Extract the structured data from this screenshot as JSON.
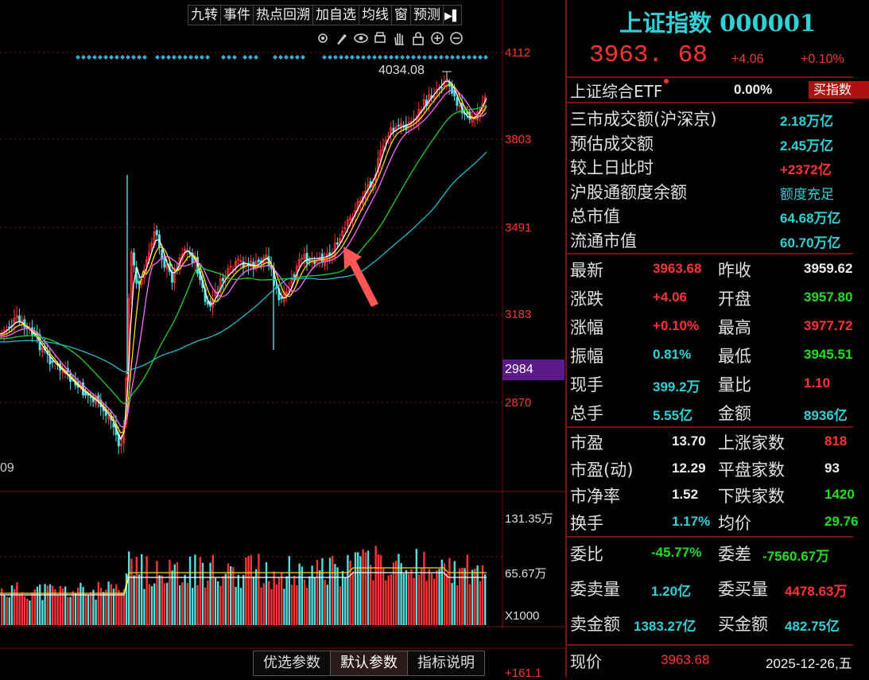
{
  "toolbar": {
    "buttons": [
      "九转",
      "事件",
      "热点回溯",
      "加自选",
      "均线",
      "窗",
      "预测"
    ]
  },
  "icons": [
    "gear-icon",
    "brush-icon",
    "eye-icon",
    "print-icon",
    "hand-icon",
    "lock-icon",
    "zoom-in-icon",
    "zoom-out-icon"
  ],
  "chart": {
    "price_labels": [
      "4112",
      "3803",
      "3491",
      "3183",
      "2870"
    ],
    "current_price_tag": "2984",
    "peak_label": "4034.08",
    "left_partial_label": "09",
    "volume_labels": [
      "131.35万",
      "65.67万"
    ],
    "volume_unit": "X1000",
    "bottom_partial": "+161.1",
    "colors": {
      "up": "#ff3333",
      "down": "#55dddd",
      "ma_white": "#ffffff",
      "ma_yellow": "#ffdd00",
      "ma_pink": "#ff66ff",
      "ma_green": "#22cc22",
      "ma_cyan": "#22bbcc",
      "arrow": "#ff5555"
    }
  },
  "bottom_tabs": [
    "优选参数",
    "默认参数",
    "指标说明"
  ],
  "panel": {
    "title": "上证指数 000001",
    "price": "3963. 68",
    "change": "+4.06",
    "change_pct": "+0.10%",
    "etf_label": "上证综合ETF",
    "etf_value": "0.00%",
    "etf_button": "买指数",
    "info": [
      {
        "label": "三市成交额(沪深京)",
        "value": "2.18万亿"
      },
      {
        "label": "预估成交额",
        "value": "2.45万亿"
      },
      {
        "label": "较上日此时",
        "value": "+2372亿"
      },
      {
        "label": "沪股通额度余额",
        "value": "额度充足"
      },
      {
        "label": "总市值",
        "value": "64.68万亿"
      },
      {
        "label": "流通市值",
        "value": "60.70万亿"
      }
    ],
    "quote": [
      {
        "l1": "最新",
        "v1": "3963.68",
        "l2": "昨收",
        "v2": "3959.62"
      },
      {
        "l1": "涨跌",
        "v1": "+4.06",
        "l2": "开盘",
        "v2": "3957.80"
      },
      {
        "l1": "涨幅",
        "v1": "+0.10%",
        "l2": "最高",
        "v2": "3977.72"
      },
      {
        "l1": "振幅",
        "v1": "0.81%",
        "l2": "最低",
        "v2": "3945.51"
      },
      {
        "l1": "现手",
        "v1": "399.2万",
        "l2": "量比",
        "v2": "1.10"
      },
      {
        "l1": "总手",
        "v1": "5.55亿",
        "l2": "金额",
        "v2": "8936亿"
      }
    ],
    "valuation": [
      {
        "l1": "市盈",
        "v1": "13.70",
        "l2": "上涨家数",
        "v2": "818"
      },
      {
        "l1": "市盈(动)",
        "v1": "12.29",
        "l2": "平盘家数",
        "v2": "93"
      },
      {
        "l1": "市净率",
        "v1": "1.52",
        "l2": "下跌家数",
        "v2": "1420"
      },
      {
        "l1": "换手",
        "v1": "1.17%",
        "l2": "均价",
        "v2": "29.76"
      }
    ],
    "orders": [
      {
        "l1": "委比",
        "v1": "-45.77%",
        "l2": "委差",
        "v2": "-7560.67万"
      },
      {
        "l1": "委卖量",
        "v1": "1.20亿",
        "l2": "委买量",
        "v2": "4478.63万"
      },
      {
        "l1": "卖金额",
        "v1": "1383.27亿",
        "l2": "买金额",
        "v2": "482.75亿"
      }
    ],
    "last": {
      "label": "现价",
      "price": "3963.68",
      "date": "2025-12-26,五"
    }
  }
}
